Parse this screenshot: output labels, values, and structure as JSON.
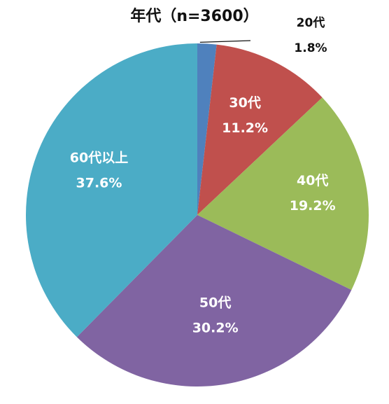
{
  "chart_data": {
    "type": "pie",
    "title": "年代（n=3600）",
    "categories": [
      "20代",
      "30代",
      "40代",
      "50代",
      "60代以上"
    ],
    "values": [
      1.8,
      11.2,
      19.2,
      30.2,
      37.6
    ],
    "value_labels": [
      "1.8%",
      "11.2%",
      "19.2%",
      "30.2%",
      "37.6%"
    ],
    "colors": [
      "#4F81BD",
      "#C0504D",
      "#9BBB59",
      "#8064A2",
      "#4BACC6"
    ],
    "start": "12 o'clock",
    "direction": "clockwise",
    "legend": "none"
  }
}
